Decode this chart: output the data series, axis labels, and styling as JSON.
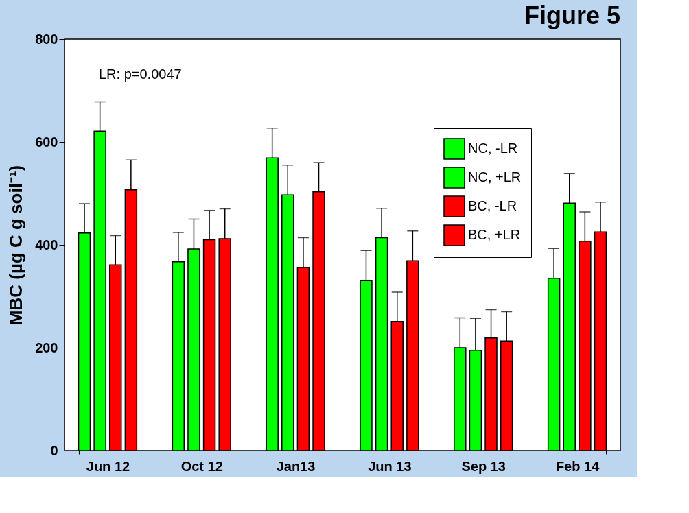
{
  "chart_data": {
    "type": "bar",
    "title": "Figure 5",
    "ylabel": "MBC (µg C g soil⁻¹)",
    "categories": [
      "Jun 12",
      "Oct 12",
      "Jan13",
      "Jun 13",
      "Sep 13",
      "Feb 14"
    ],
    "series": [
      {
        "name": "NC, -LR",
        "color": "#00ff00",
        "values": [
          423,
          367,
          569,
          331,
          200,
          335
        ],
        "errors": [
          [
            423,
            480
          ],
          [
            367,
            424
          ],
          [
            569,
            627
          ],
          [
            331,
            389
          ],
          [
            200,
            258
          ],
          [
            335,
            393
          ]
        ]
      },
      {
        "name": "NC, +LR",
        "color": "#00ff00",
        "values": [
          621,
          392,
          497,
          414,
          195,
          481
        ],
        "errors": [
          [
            621,
            678
          ],
          [
            392,
            450
          ],
          [
            497,
            555
          ],
          [
            414,
            471
          ],
          [
            195,
            257
          ],
          [
            481,
            539
          ]
        ]
      },
      {
        "name": "BC, -LR",
        "color": "#ff0000",
        "values": [
          361,
          410,
          356,
          251,
          219,
          407
        ],
        "errors": [
          [
            361,
            418
          ],
          [
            410,
            467
          ],
          [
            356,
            414
          ],
          [
            251,
            308
          ],
          [
            219,
            274
          ],
          [
            407,
            464
          ]
        ]
      },
      {
        "name": "BC, +LR",
        "color": "#ff0000",
        "values": [
          507,
          412,
          503,
          369,
          213,
          425
        ],
        "errors": [
          [
            507,
            565
          ],
          [
            412,
            470
          ],
          [
            503,
            560
          ],
          [
            369,
            427
          ],
          [
            213,
            270
          ],
          [
            425,
            483
          ]
        ]
      }
    ],
    "ylim": [
      0,
      800
    ],
    "yticks": [
      0,
      200,
      400,
      600,
      800
    ],
    "grid": false,
    "legend": "top right",
    "annotations": [
      "LR: p=0.0047"
    ]
  }
}
